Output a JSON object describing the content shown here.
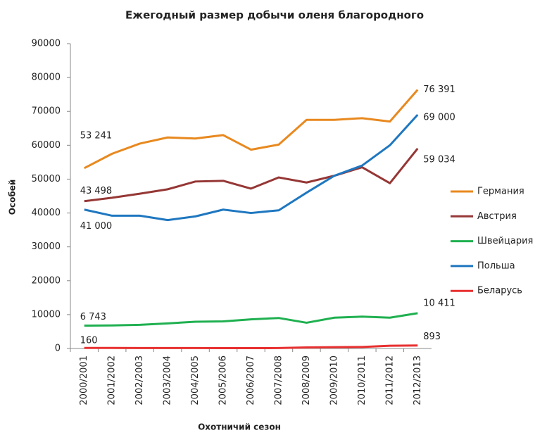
{
  "chart_data": {
    "type": "line",
    "title": "Ежегодный размер добычи оленя благородного",
    "x_label": "Охотничий  сезон",
    "y_label": "Особей",
    "categories": [
      "2000/2001",
      "2001/2002",
      "2002/2003",
      "2003/2004",
      "2004/2005",
      "2005/2006",
      "2006/2007",
      "2007/2008",
      "2008/2009",
      "2009/2010",
      "2010/2011",
      "2011/2012",
      "2012/2013"
    ],
    "ylim": [
      0,
      90000
    ],
    "yticks": [
      0,
      10000,
      20000,
      30000,
      40000,
      50000,
      60000,
      70000,
      80000,
      90000
    ],
    "legend": "right",
    "series": [
      {
        "name": "Германия",
        "color": "#e8891f",
        "values": [
          53241,
          57500,
          60500,
          62300,
          62000,
          63000,
          58700,
          60200,
          67500,
          67500,
          68000,
          67000,
          76391
        ],
        "value_labels": [
          "53 241",
          null,
          null,
          null,
          null,
          null,
          null,
          null,
          null,
          null,
          null,
          null,
          "76 391"
        ]
      },
      {
        "name": "Австрия",
        "color": "#953735",
        "values": [
          43498,
          44500,
          45700,
          47000,
          49300,
          49500,
          47200,
          50500,
          49000,
          51000,
          53500,
          48800,
          59034
        ],
        "value_labels": [
          "43 498",
          null,
          null,
          null,
          null,
          null,
          null,
          null,
          null,
          null,
          null,
          null,
          "59 034"
        ]
      },
      {
        "name": "Швейцария",
        "color": "#1fb050",
        "values": [
          6743,
          6800,
          7000,
          7400,
          7900,
          8000,
          8600,
          9000,
          7600,
          9100,
          9400,
          9100,
          10411
        ],
        "value_labels": [
          "6 743",
          null,
          null,
          null,
          null,
          null,
          null,
          null,
          null,
          null,
          null,
          null,
          "10 411"
        ]
      },
      {
        "name": "Польша",
        "color": "#1f77c0",
        "values": [
          41000,
          39200,
          39200,
          37900,
          39000,
          41000,
          40000,
          40800,
          46000,
          51000,
          54000,
          60000,
          69000
        ],
        "value_labels": [
          "41 000",
          null,
          null,
          null,
          null,
          null,
          null,
          null,
          null,
          null,
          null,
          null,
          "69 000"
        ]
      },
      {
        "name": "Беларусь",
        "color": "#e83030",
        "values": [
          160,
          150,
          140,
          130,
          120,
          110,
          100,
          120,
          300,
          400,
          450,
          800,
          893
        ],
        "value_labels": [
          "160",
          null,
          null,
          null,
          null,
          null,
          null,
          null,
          null,
          null,
          null,
          null,
          "893"
        ]
      }
    ]
  }
}
